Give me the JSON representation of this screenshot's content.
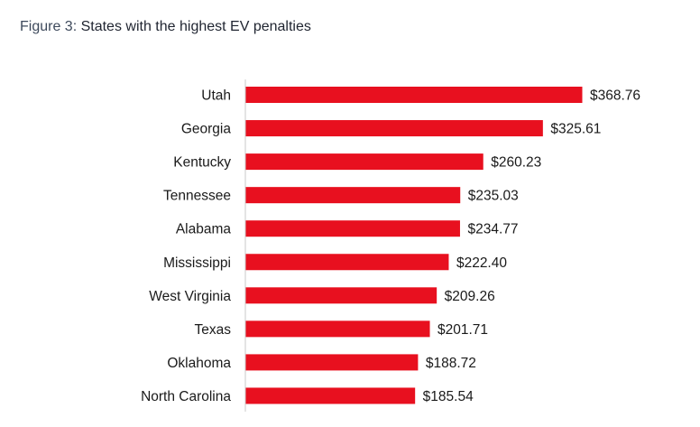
{
  "figure": {
    "label": "Figure 3:",
    "title": "States with the highest EV penalties"
  },
  "colors": {
    "bar": "#e8101f",
    "axis": "#c9c9c9",
    "text": "#1a1a1a",
    "figure_label": "#3e4a5c"
  },
  "chart_data": {
    "type": "bar",
    "orientation": "horizontal",
    "title": "States with the highest EV penalties",
    "categories": [
      "Utah",
      "Georgia",
      "Kentucky",
      "Tennessee",
      "Alabama",
      "Mississippi",
      "West Virginia",
      "Texas",
      "Oklahoma",
      "North Carolina"
    ],
    "values": [
      368.76,
      325.61,
      260.23,
      235.03,
      234.77,
      222.4,
      209.26,
      201.71,
      188.72,
      185.54
    ],
    "value_labels": [
      "$368.76",
      "$325.61",
      "$260.23",
      "$235.03",
      "$234.77",
      "$222.40",
      "$209.26",
      "$201.71",
      "$188.72",
      "$185.54"
    ],
    "xlabel": "",
    "ylabel": "",
    "xlim": [
      0,
      370
    ],
    "grid": false,
    "legend": "none"
  }
}
